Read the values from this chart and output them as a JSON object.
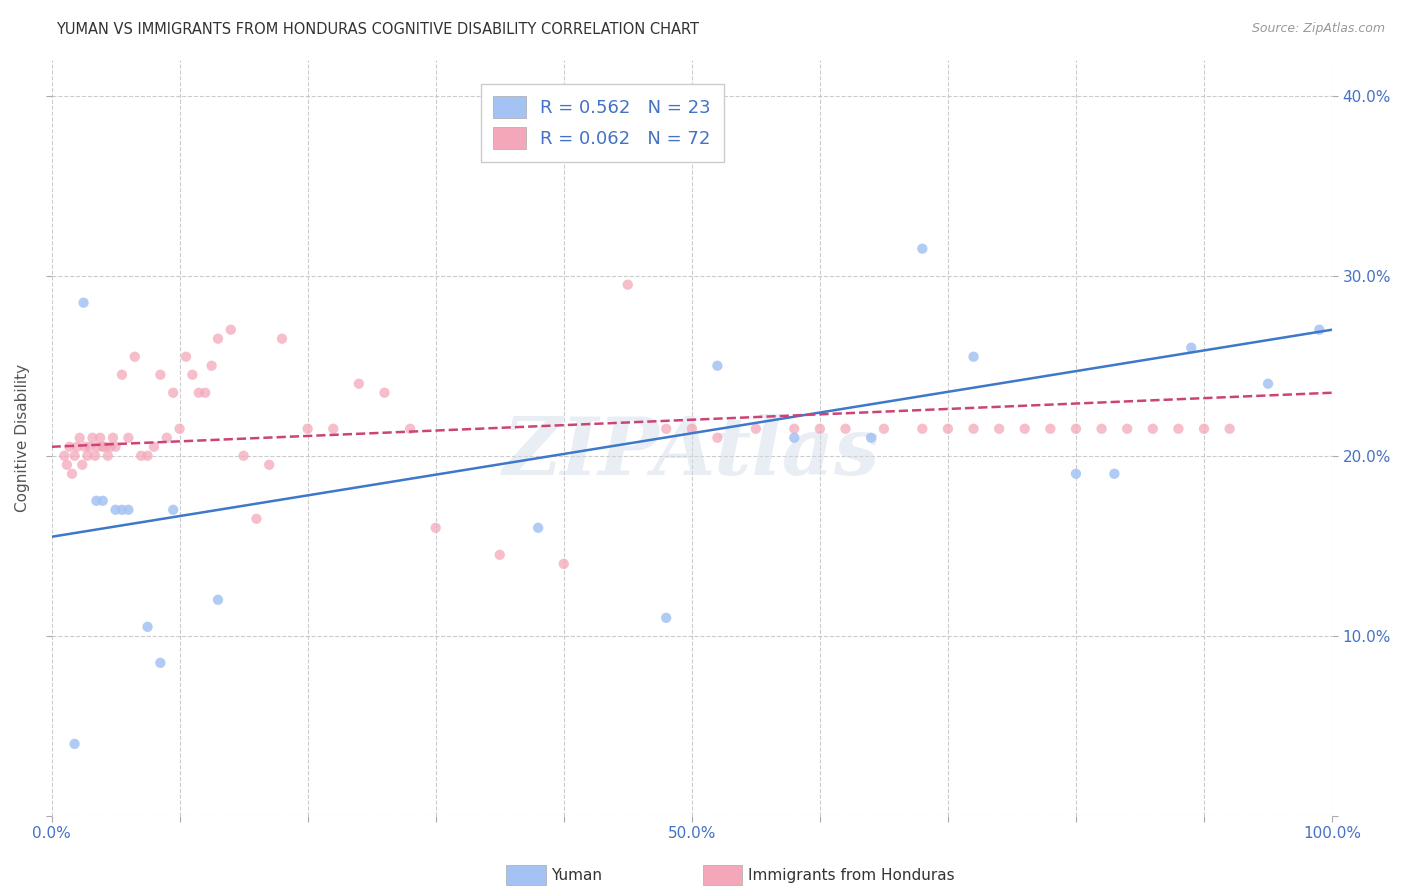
{
  "title": "YUMAN VS IMMIGRANTS FROM HONDURAS COGNITIVE DISABILITY CORRELATION CHART",
  "source": "Source: ZipAtlas.com",
  "ylabel": "Cognitive Disability",
  "xlim": [
    0,
    1.0
  ],
  "ylim": [
    0,
    0.42
  ],
  "xticks": [
    0.0,
    0.1,
    0.2,
    0.3,
    0.4,
    0.5,
    0.6,
    0.7,
    0.8,
    0.9,
    1.0
  ],
  "yticks": [
    0.0,
    0.1,
    0.2,
    0.3,
    0.4
  ],
  "right_ytick_labels": [
    "",
    "10.0%",
    "20.0%",
    "30.0%",
    "40.0%"
  ],
  "xtick_labels": [
    "0.0%",
    "",
    "",
    "",
    "",
    "50.0%",
    "",
    "",
    "",
    "",
    "100.0%"
  ],
  "watermark": "ZIPAtlas",
  "legend_r1": "R = 0.562",
  "legend_n1": "N = 23",
  "legend_r2": "R = 0.062",
  "legend_n2": "N = 72",
  "color_blue": "#a4c2f4",
  "color_pink": "#f4a7b9",
  "line_blue": "#3d78c9",
  "line_pink": "#cc4477",
  "background": "#ffffff",
  "grid_color": "#c0c0c0",
  "blue_x": [
    0.018,
    0.025,
    0.035,
    0.04,
    0.05,
    0.055,
    0.06,
    0.075,
    0.085,
    0.095,
    0.13,
    0.38,
    0.48,
    0.52,
    0.58,
    0.64,
    0.68,
    0.72,
    0.8,
    0.83,
    0.89,
    0.95,
    0.99
  ],
  "blue_y": [
    0.04,
    0.285,
    0.175,
    0.175,
    0.17,
    0.17,
    0.17,
    0.105,
    0.085,
    0.17,
    0.12,
    0.16,
    0.11,
    0.25,
    0.21,
    0.21,
    0.315,
    0.255,
    0.19,
    0.19,
    0.26,
    0.24,
    0.27
  ],
  "pink_x": [
    0.01,
    0.012,
    0.014,
    0.016,
    0.018,
    0.02,
    0.022,
    0.024,
    0.026,
    0.028,
    0.03,
    0.032,
    0.034,
    0.036,
    0.038,
    0.04,
    0.042,
    0.044,
    0.046,
    0.048,
    0.05,
    0.055,
    0.06,
    0.065,
    0.07,
    0.075,
    0.08,
    0.085,
    0.09,
    0.095,
    0.1,
    0.105,
    0.11,
    0.115,
    0.12,
    0.125,
    0.13,
    0.14,
    0.15,
    0.16,
    0.17,
    0.18,
    0.2,
    0.22,
    0.24,
    0.26,
    0.28,
    0.3,
    0.35,
    0.4,
    0.45,
    0.48,
    0.5,
    0.52,
    0.55,
    0.58,
    0.6,
    0.62,
    0.65,
    0.68,
    0.7,
    0.72,
    0.74,
    0.76,
    0.78,
    0.8,
    0.82,
    0.84,
    0.86,
    0.88,
    0.9,
    0.92
  ],
  "pink_y": [
    0.2,
    0.195,
    0.205,
    0.19,
    0.2,
    0.205,
    0.21,
    0.195,
    0.205,
    0.2,
    0.205,
    0.21,
    0.2,
    0.205,
    0.21,
    0.205,
    0.205,
    0.2,
    0.205,
    0.21,
    0.205,
    0.245,
    0.21,
    0.255,
    0.2,
    0.2,
    0.205,
    0.245,
    0.21,
    0.235,
    0.215,
    0.255,
    0.245,
    0.235,
    0.235,
    0.25,
    0.265,
    0.27,
    0.2,
    0.165,
    0.195,
    0.265,
    0.215,
    0.215,
    0.24,
    0.235,
    0.215,
    0.16,
    0.145,
    0.14,
    0.295,
    0.215,
    0.215,
    0.21,
    0.215,
    0.215,
    0.215,
    0.215,
    0.215,
    0.215,
    0.215,
    0.215,
    0.215,
    0.215,
    0.215,
    0.215,
    0.215,
    0.215,
    0.215,
    0.215,
    0.215,
    0.215
  ],
  "blue_line_x0": 0.0,
  "blue_line_y0": 0.155,
  "blue_line_x1": 1.0,
  "blue_line_y1": 0.27,
  "pink_line_x0": 0.0,
  "pink_line_y0": 0.205,
  "pink_line_x1": 1.0,
  "pink_line_y1": 0.235
}
